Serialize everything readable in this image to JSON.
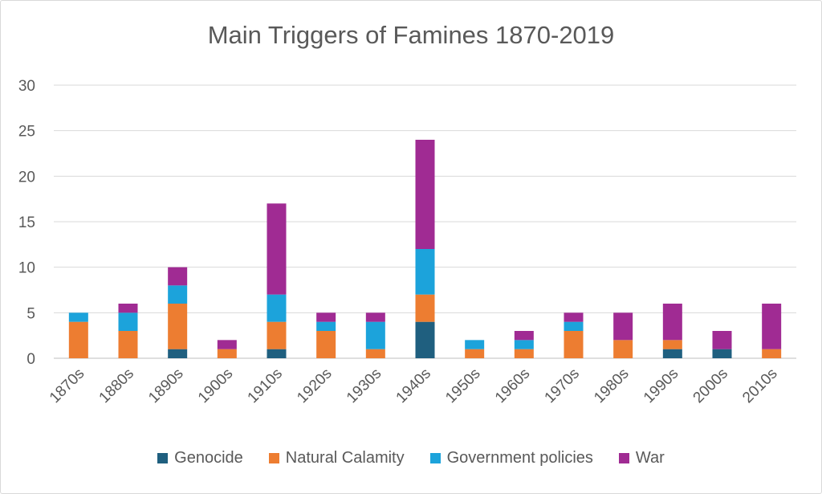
{
  "chart_data": {
    "type": "bar",
    "stacked": true,
    "title": "Main Triggers of Famines 1870-2019",
    "xlabel": "",
    "ylabel": "",
    "ylim": [
      0,
      30
    ],
    "yticks": [
      0,
      5,
      10,
      15,
      20,
      25,
      30
    ],
    "grid": true,
    "legend_position": "bottom",
    "categories": [
      "1870s",
      "1880s",
      "1890s",
      "1900s",
      "1910s",
      "1920s",
      "1930s",
      "1940s",
      "1950s",
      "1960s",
      "1970s",
      "1980s",
      "1990s",
      "2000s",
      "2010s"
    ],
    "series": [
      {
        "name": "Genocide",
        "color": "#1f5f7f",
        "values": [
          0,
          0,
          1,
          0,
          1,
          0,
          0,
          4,
          0,
          0,
          0,
          0,
          1,
          1,
          0
        ]
      },
      {
        "name": "Natural Calamity",
        "color": "#ed7d31",
        "values": [
          4,
          3,
          5,
          1,
          3,
          3,
          1,
          3,
          1,
          1,
          3,
          2,
          1,
          0,
          1
        ]
      },
      {
        "name": "Government policies",
        "color": "#1ca3db",
        "values": [
          1,
          2,
          2,
          0,
          3,
          1,
          3,
          5,
          1,
          1,
          1,
          0,
          0,
          0,
          0
        ]
      },
      {
        "name": "War",
        "color": "#a02b93",
        "values": [
          0,
          1,
          2,
          1,
          10,
          1,
          1,
          12,
          0,
          1,
          1,
          3,
          4,
          2,
          5
        ]
      }
    ]
  }
}
